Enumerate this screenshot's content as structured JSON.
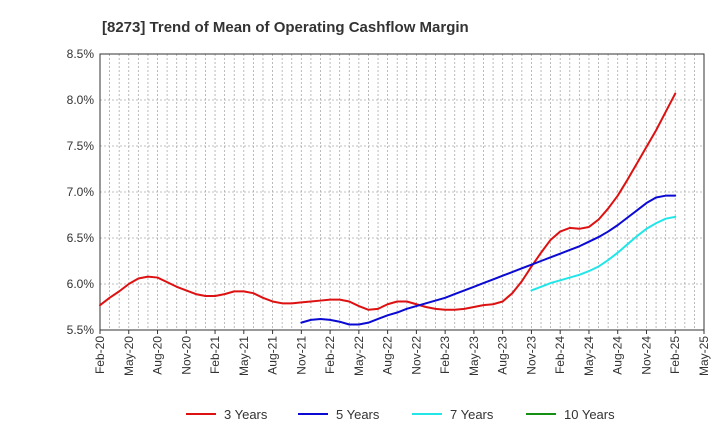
{
  "chart_data": {
    "type": "line",
    "title": "[8273]  Trend of Mean of Operating Cashflow Margin",
    "xlabel": "",
    "ylabel": "",
    "ylim": [
      5.5,
      8.5
    ],
    "y_ticks": [
      5.5,
      6.0,
      6.5,
      7.0,
      7.5,
      8.0,
      8.5
    ],
    "y_tick_labels": [
      "5.5%",
      "6.0%",
      "6.5%",
      "7.0%",
      "7.5%",
      "8.0%",
      "8.5%"
    ],
    "x_tick_labels": [
      "Feb-20",
      "May-20",
      "Aug-20",
      "Nov-20",
      "Feb-21",
      "May-21",
      "Aug-21",
      "Nov-21",
      "Feb-22",
      "May-22",
      "Aug-22",
      "Nov-22",
      "Feb-23",
      "May-23",
      "Aug-23",
      "Nov-23",
      "Feb-24",
      "May-24",
      "Aug-24",
      "Nov-24",
      "Feb-25",
      "May-25"
    ],
    "x_start": "Feb-20",
    "x_end": "May-25",
    "grid": true,
    "legend_position": "bottom",
    "series": [
      {
        "name": "3 Years",
        "color": "#dd1111",
        "start_month_index": 0,
        "values": [
          5.77,
          5.85,
          5.92,
          6.0,
          6.06,
          6.08,
          6.07,
          6.02,
          5.97,
          5.93,
          5.89,
          5.87,
          5.87,
          5.89,
          5.92,
          5.92,
          5.9,
          5.85,
          5.81,
          5.79,
          5.79,
          5.8,
          5.81,
          5.82,
          5.83,
          5.83,
          5.81,
          5.76,
          5.72,
          5.73,
          5.78,
          5.81,
          5.81,
          5.78,
          5.75,
          5.73,
          5.72,
          5.72,
          5.73,
          5.75,
          5.77,
          5.78,
          5.81,
          5.9,
          6.03,
          6.19,
          6.34,
          6.48,
          6.57,
          6.61,
          6.6,
          6.62,
          6.7,
          6.82,
          6.96,
          7.13,
          7.31,
          7.49,
          7.67,
          7.87,
          8.07
        ]
      },
      {
        "name": "5 Years",
        "color": "#0a0ad2",
        "start_month_index": 21,
        "values": [
          5.58,
          5.61,
          5.62,
          5.61,
          5.59,
          5.56,
          5.56,
          5.58,
          5.62,
          5.66,
          5.69,
          5.73,
          5.76,
          5.79,
          5.82,
          5.85,
          5.89,
          5.93,
          5.97,
          6.01,
          6.05,
          6.09,
          6.13,
          6.17,
          6.21,
          6.25,
          6.29,
          6.33,
          6.37,
          6.41,
          6.46,
          6.51,
          6.57,
          6.64,
          6.72,
          6.8,
          6.88,
          6.94,
          6.96,
          6.96
        ]
      },
      {
        "name": "7 Years",
        "color": "#22e5e8",
        "start_month_index": 45,
        "values": [
          5.93,
          5.97,
          6.01,
          6.04,
          6.07,
          6.1,
          6.14,
          6.19,
          6.26,
          6.34,
          6.43,
          6.52,
          6.6,
          6.66,
          6.71,
          6.73
        ]
      },
      {
        "name": "10 Years",
        "color": "#159015",
        "start_month_index": 0,
        "values": []
      }
    ]
  }
}
